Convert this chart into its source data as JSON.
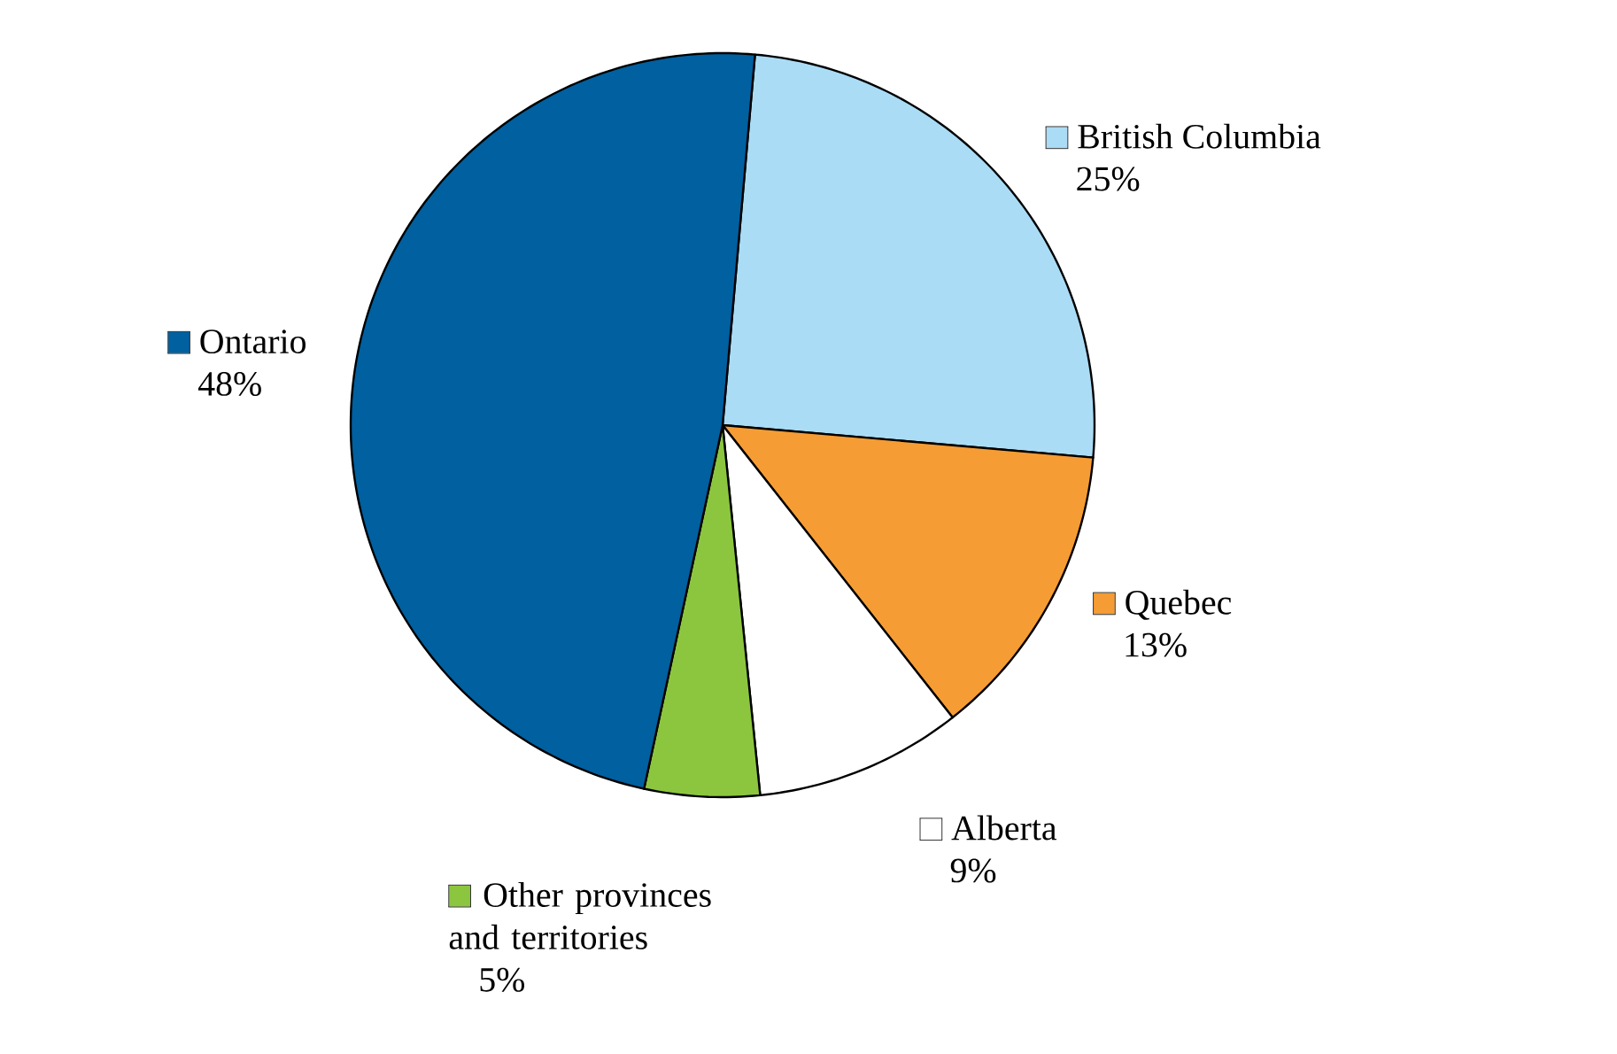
{
  "chart_data": {
    "type": "pie",
    "categories": [
      "British Columbia",
      "Quebec",
      "Alberta",
      "Other provinces and territories",
      "Ontario"
    ],
    "values": [
      25,
      13,
      9,
      5,
      48
    ],
    "value_labels": [
      "25%",
      "13%",
      "9%",
      "5%",
      "48%"
    ],
    "colors": [
      "#aadcf5",
      "#f59c34",
      "#ffffff",
      "#8cc63f",
      "#0060a0"
    ],
    "legend": "right"
  }
}
